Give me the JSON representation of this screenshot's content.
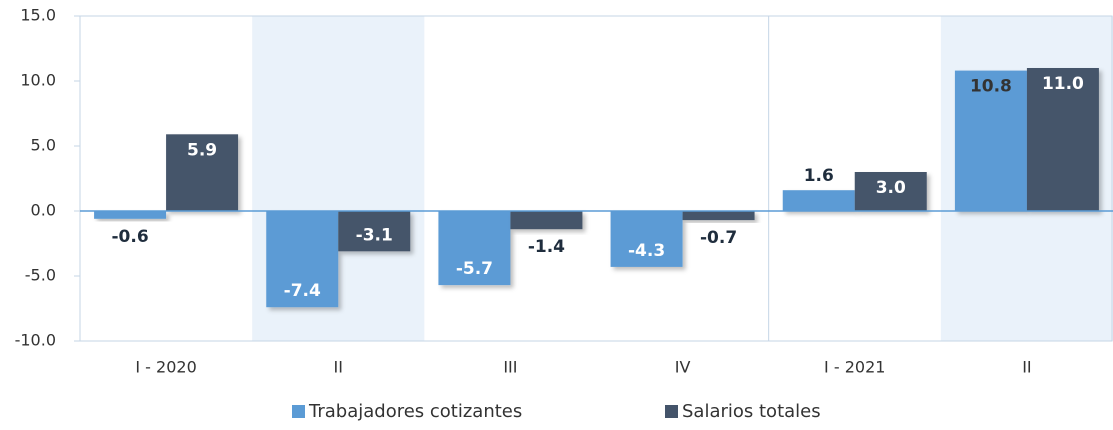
{
  "chart_data": {
    "type": "bar",
    "categories": [
      "I - 2020",
      "II",
      "III",
      "IV",
      "I - 2021",
      "II"
    ],
    "series": [
      {
        "name": "Trabajadores cotizantes",
        "color": "#5b9bd5",
        "values": [
          -0.6,
          -7.4,
          -5.7,
          -4.3,
          1.6,
          10.8
        ],
        "value_labels": [
          "-0.6",
          "-7.4",
          "-5.7",
          "-4.3",
          "1.6",
          "10.8"
        ]
      },
      {
        "name": "Salarios totales",
        "color": "#44546a",
        "values": [
          5.9,
          -3.1,
          -1.4,
          -0.7,
          3.0,
          11.0
        ],
        "value_labels": [
          "5.9",
          "-3.1",
          "-1.4",
          "-0.7",
          "3.0",
          "11.0"
        ]
      }
    ],
    "ylim": [
      -10,
      15
    ],
    "yticks": [
      {
        "value": 15,
        "label": "15.0"
      },
      {
        "value": 10,
        "label": "10.0"
      },
      {
        "value": 5,
        "label": "5.0"
      },
      {
        "value": 0,
        "label": "0.0"
      },
      {
        "value": -5,
        "label": "-5.0"
      },
      {
        "value": -10,
        "label": "-10.0"
      }
    ],
    "legend": "bottom"
  }
}
